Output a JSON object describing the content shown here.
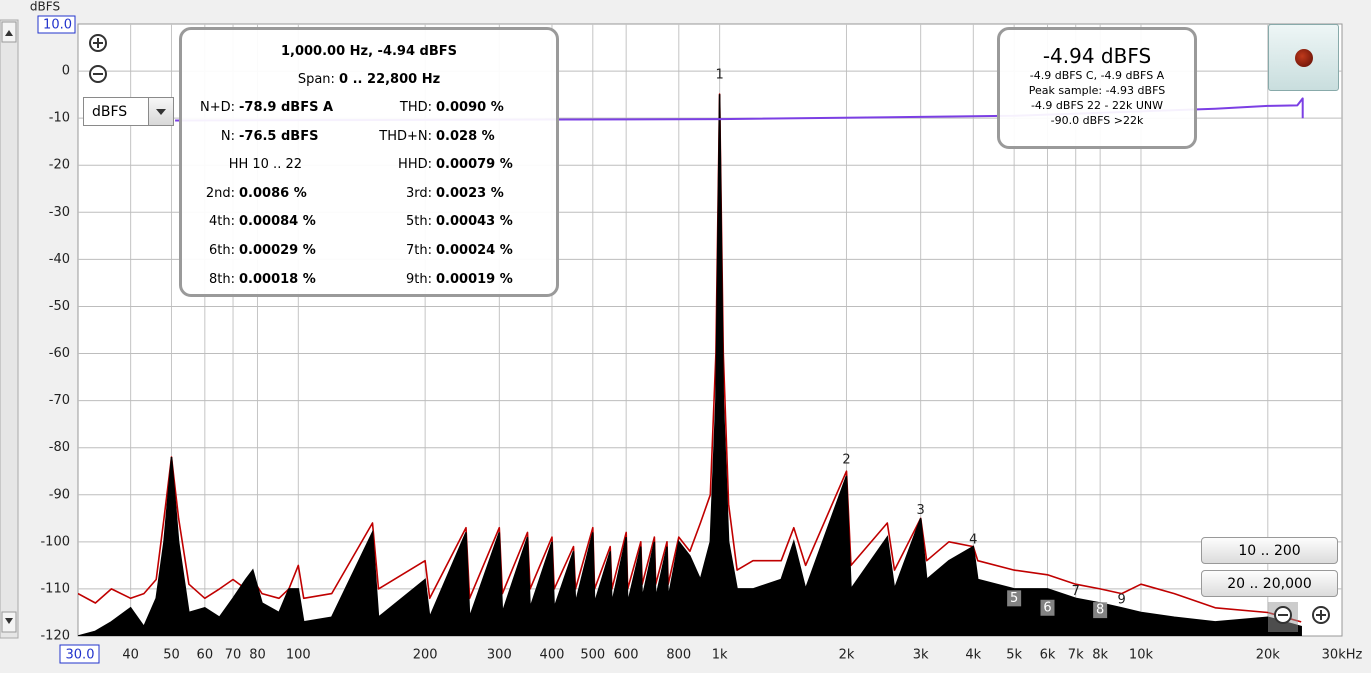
{
  "chart_data": {
    "type": "line",
    "y_label": "dBFS",
    "xscale": "log",
    "xlim": [
      30,
      30000
    ],
    "ylim": [
      -120,
      10
    ],
    "grid": true,
    "xticks": [
      {
        "value": 30,
        "label": "30.0"
      },
      40,
      50,
      60,
      70,
      80,
      100,
      200,
      300,
      400,
      500,
      600,
      800,
      {
        "value": 1000,
        "label": "1k"
      },
      {
        "value": 2000,
        "label": "2k"
      },
      {
        "value": 3000,
        "label": "3k"
      },
      {
        "value": 4000,
        "label": "4k"
      },
      {
        "value": 5000,
        "label": "5k"
      },
      {
        "value": 6000,
        "label": "6k"
      },
      {
        "value": 7000,
        "label": "7k"
      },
      {
        "value": 8000,
        "label": "8k"
      },
      {
        "value": 10000,
        "label": "10k"
      },
      {
        "value": 20000,
        "label": "20k"
      },
      {
        "value": 30000,
        "label": "30kHz"
      }
    ],
    "yticks": [
      {
        "value": 10,
        "label": "10.0"
      },
      0,
      -10,
      -20,
      -30,
      -40,
      -50,
      -60,
      -70,
      -80,
      -90,
      -100,
      -110,
      -120
    ],
    "x": [
      30,
      33,
      36,
      40,
      43,
      46,
      48,
      50,
      52,
      55,
      60,
      65,
      70,
      75,
      78,
      82,
      90,
      95,
      100,
      103,
      120,
      150,
      155,
      200,
      205,
      250,
      255,
      300,
      305,
      350,
      355,
      400,
      405,
      450,
      455,
      500,
      505,
      550,
      555,
      600,
      605,
      650,
      655,
      700,
      705,
      750,
      755,
      800,
      850,
      900,
      950,
      980,
      1000,
      1020,
      1050,
      1100,
      1200,
      1400,
      1500,
      1600,
      2000,
      2050,
      2500,
      2600,
      3000,
      3100,
      3500,
      4000,
      4100,
      5000,
      6000,
      7000,
      8000,
      9000,
      10000,
      12000,
      15000,
      20000,
      24000
    ],
    "series": [
      {
        "color": "#c00000",
        "style": "line",
        "values": [
          -111,
          -113,
          -110,
          -112,
          -111,
          -108,
          -95,
          -82,
          -95,
          -109,
          -112,
          -110,
          -108,
          -110,
          -108,
          -111,
          -112,
          -110,
          -105,
          -112,
          -111,
          -96,
          -110,
          -104,
          -112,
          -97,
          -112,
          -97,
          -111,
          -98,
          -110,
          -99,
          -110,
          -101,
          -110,
          -97,
          -110,
          -101,
          -110,
          -98,
          -110,
          -100,
          -109,
          -99,
          -109,
          -100,
          -109,
          -99,
          -102,
          -96,
          -90,
          -60,
          -4.9,
          -60,
          -92,
          -106,
          -104,
          -104,
          -97,
          -105,
          -85,
          -105,
          -96,
          -106,
          -95,
          -104,
          -100,
          -101,
          -104,
          -106,
          -107,
          -109,
          -110,
          -111,
          -109,
          -111,
          -114,
          -115,
          -117
        ]
      },
      {
        "color": "#000000",
        "style": "area",
        "values": [
          -120,
          -119,
          -117,
          -114,
          -118,
          -112,
          -100,
          -82,
          -100,
          -115,
          -114,
          -116,
          -112,
          -108,
          -106,
          -113,
          -115,
          -110,
          -110,
          -117,
          -116,
          -98,
          -116,
          -108,
          -116,
          -98,
          -116,
          -98,
          -115,
          -99,
          -114,
          -100,
          -114,
          -102,
          -113,
          -98,
          -113,
          -102,
          -113,
          -99,
          -113,
          -101,
          -112,
          -100,
          -112,
          -101,
          -112,
          -100,
          -103,
          -108,
          -100,
          -70,
          -4.94,
          -70,
          -100,
          -110,
          -110,
          -108,
          -100,
          -110,
          -86,
          -110,
          -99,
          -110,
          -95,
          -108,
          -104,
          -101,
          -108,
          -110,
          -110,
          -112,
          -113,
          -114,
          -115,
          -116,
          -117,
          -116,
          -118
        ]
      },
      {
        "color": "#7b3fe4",
        "style": "line",
        "x": [
          51,
          1000,
          5000,
          15000,
          20000,
          23500,
          24200,
          24200
        ],
        "values": [
          -10.5,
          -10.2,
          -9.5,
          -8,
          -7.4,
          -7.3,
          -5.8,
          -10
        ]
      }
    ],
    "annotations": [
      {
        "text": "1",
        "x": 1000,
        "y": -0.8,
        "boxed": false
      },
      {
        "text": "2",
        "x": 2000,
        "y": -82.6,
        "boxed": false
      },
      {
        "text": "3",
        "x": 3000,
        "y": -93.3,
        "boxed": false
      },
      {
        "text": "4",
        "x": 4000,
        "y": -99.6,
        "boxed": false
      },
      {
        "text": "5",
        "x": 5000,
        "y": -112,
        "boxed": true
      },
      {
        "text": "6",
        "x": 6000,
        "y": -114,
        "boxed": true
      },
      {
        "text": "7",
        "x": 7000,
        "y": -110.5,
        "boxed": false
      },
      {
        "text": "8",
        "x": 8000,
        "y": -114.5,
        "boxed": true
      },
      {
        "text": "9",
        "x": 9000,
        "y": -112.3,
        "boxed": false
      }
    ]
  },
  "info_panel": {
    "title": "1,000.00 Hz, -4.94 dBFS",
    "span_label": "Span:",
    "span_value": "0 .. 22,800 Hz",
    "rows": [
      [
        {
          "label": "N+D:",
          "value": "-78.9 dBFS A"
        },
        {
          "label": "THD:",
          "value": "0.0090 %"
        }
      ],
      [
        {
          "label": "N:",
          "value": "-76.5 dBFS"
        },
        {
          "label": "THD+N:",
          "value": "0.028 %"
        }
      ],
      [
        {
          "label": "HH 10 .. 22"
        },
        {
          "label": "HHD:",
          "value": "0.00079 %"
        }
      ],
      [
        {
          "label": "2nd:",
          "value": "0.0086 %"
        },
        {
          "label": "3rd:",
          "value": "0.0023 %"
        }
      ],
      [
        {
          "label": "4th:",
          "value": "0.00084 %"
        },
        {
          "label": "5th:",
          "value": "0.00043 %"
        }
      ],
      [
        {
          "label": "6th:",
          "value": "0.00029 %"
        },
        {
          "label": "7th:",
          "value": "0.00024 %"
        }
      ],
      [
        {
          "label": "8th:",
          "value": "0.00018 %"
        },
        {
          "label": "9th:",
          "value": "0.00019 %"
        }
      ]
    ]
  },
  "level_panel": {
    "level": "-4.94 dBFS",
    "lines": [
      "-4.9 dBFS C, -4.9 dBFS A",
      "Peak sample: -4.93 dBFS",
      "-4.9 dBFS 22 - 22k UNW",
      "-90.0 dBFS >22k"
    ]
  },
  "unit_selector": "dBFS",
  "range_buttons": [
    "10 .. 200",
    "20 .. 20,000"
  ]
}
